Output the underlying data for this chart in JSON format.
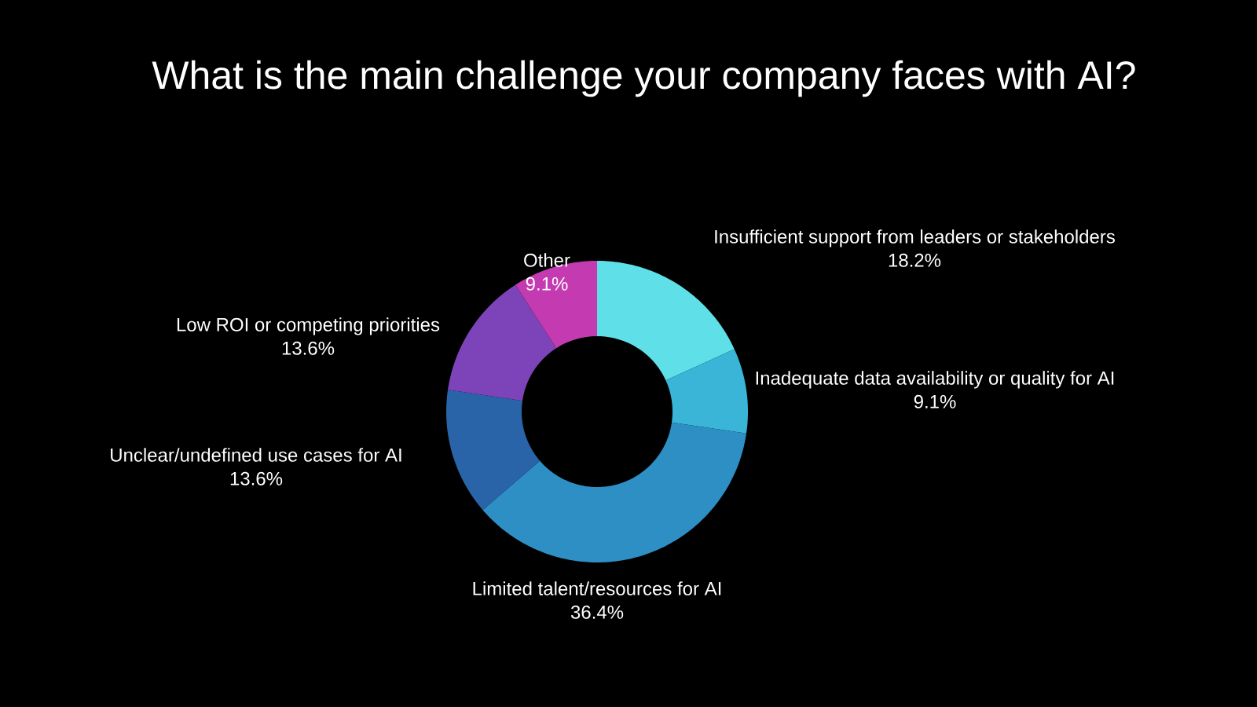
{
  "chart_data": {
    "type": "donut",
    "title": "What is the main challenge your company faces with AI?",
    "categories": [
      "Insufficient support from leaders or stakeholders",
      "Inadequate data availability or quality for AI",
      "Limited talent/resources for AI",
      "Unclear/undefined use cases for AI",
      "Low ROI or competing priorities",
      "Other"
    ],
    "values": [
      18.2,
      9.1,
      36.4,
      13.6,
      13.6,
      9.1
    ],
    "value_labels": [
      "18.2%",
      "9.1%",
      "36.4%",
      "13.6%",
      "13.6%",
      "9.1%"
    ],
    "colors": [
      "#5fdfe8",
      "#3ab5d8",
      "#2e8fc4",
      "#2a64a8",
      "#7c44b8",
      "#c43ab0"
    ]
  }
}
